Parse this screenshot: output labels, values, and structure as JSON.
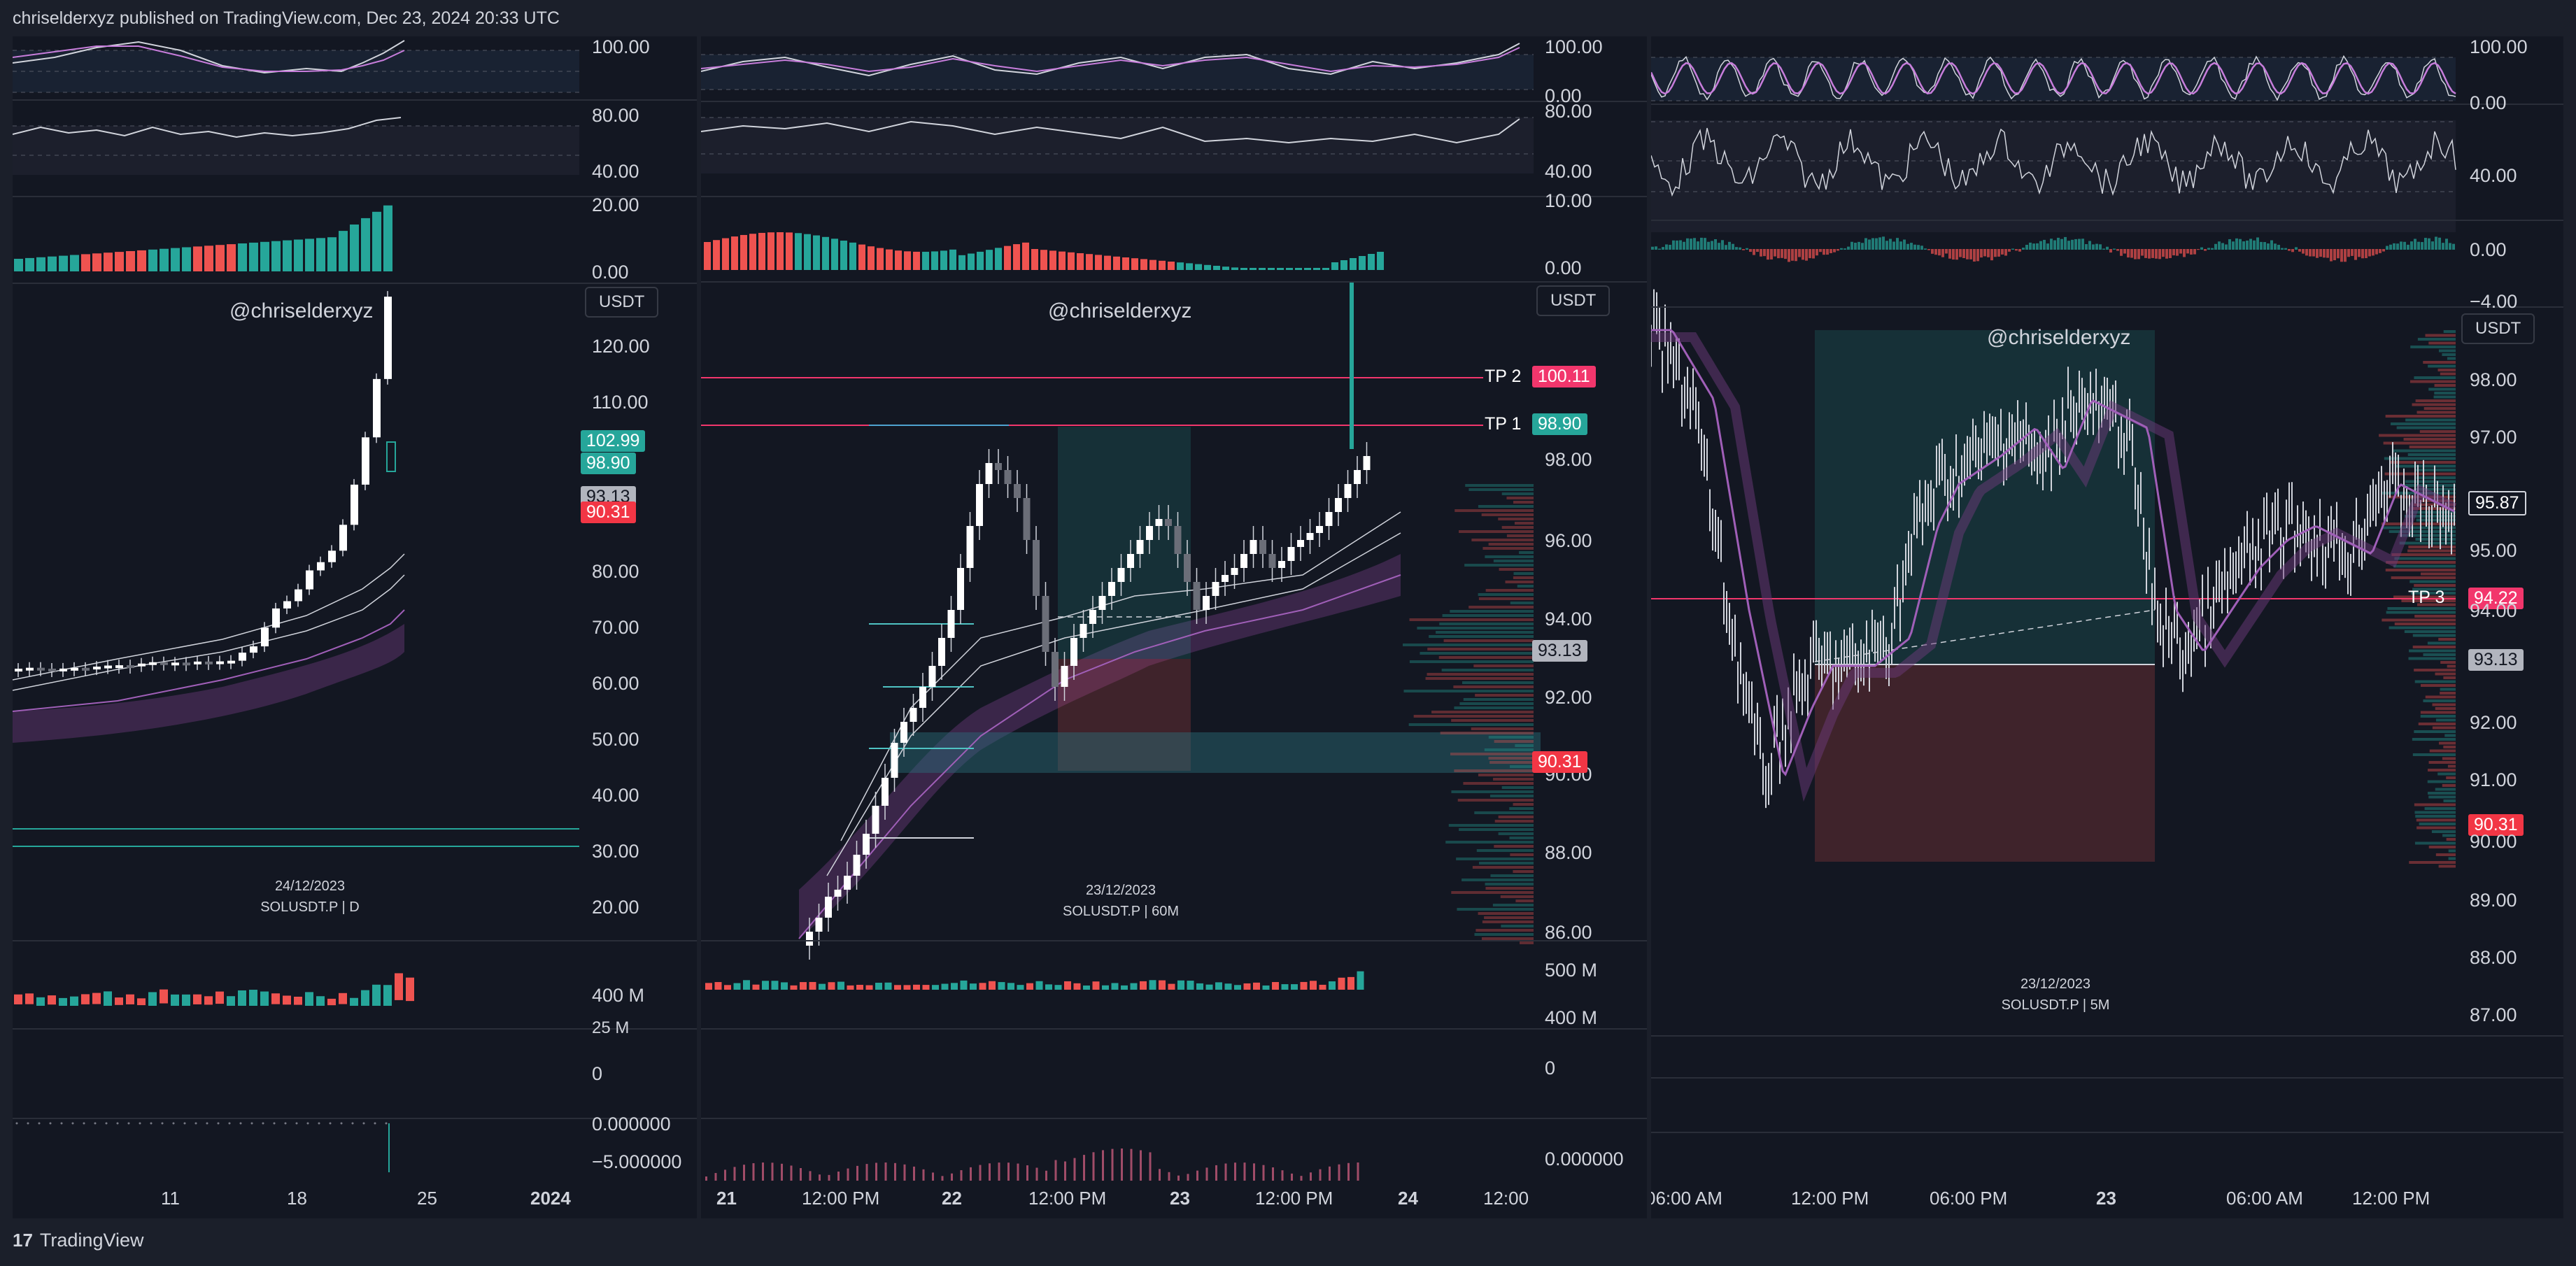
{
  "header": {
    "text": "chriselderxyz published on TradingView.com, Dec 23, 2024 20:33 UTC"
  },
  "footer": {
    "logo_glyph": "17",
    "brand": "TradingView"
  },
  "colors": {
    "bg": "#131722",
    "up": "#26a69a",
    "down": "#ef5350",
    "teal_tag": "#26a69a",
    "red_tag": "#f23645",
    "pink_tag": "#f2366c",
    "gray_tag": "#b2b5be",
    "purple": "#a05fb8"
  },
  "panels": [
    {
      "watermark": "@chriselderxyz",
      "currency": "USDT",
      "symbol_date": "24/12/2023",
      "symbol": "SOLUSDT.P | D",
      "rsi_axis": [
        "100.00",
        "80.00",
        "40.00"
      ],
      "macd_axis": [
        "20.00",
        "0.00"
      ],
      "price_axis": [
        "120.00",
        "110.00",
        "80.00",
        "70.00",
        "60.00",
        "50.00",
        "40.00",
        "30.00",
        "20.00"
      ],
      "tags": [
        {
          "text": "102.99",
          "kind": "teal"
        },
        {
          "text": "98.90",
          "kind": "teal"
        },
        {
          "text": "93.13",
          "kind": "gray"
        },
        {
          "text": "90.31",
          "kind": "red"
        }
      ],
      "volume_axis": [
        "400 M",
        "25 M",
        "0"
      ],
      "osc_axis": [
        "0.000000",
        "−5.000000"
      ],
      "time_axis": [
        "11",
        "18",
        "25",
        "2024"
      ]
    },
    {
      "watermark": "@chriselderxyz",
      "currency": "USDT",
      "symbol_date": "23/12/2023",
      "symbol": "SOLUSDT.P | 60M",
      "rsi_axis": [
        "100.00",
        "0.00",
        "80.00",
        "40.00"
      ],
      "macd_axis": [
        "10.00",
        "0.00"
      ],
      "price_axis": [
        "98.00",
        "96.00",
        "94.00",
        "92.00",
        "90.00",
        "88.00",
        "86.00"
      ],
      "tp_labels": [
        "TP 2",
        "TP 1"
      ],
      "tags": [
        {
          "text": "100.11",
          "kind": "pink"
        },
        {
          "text": "98.90",
          "kind": "teal"
        },
        {
          "text": "93.13",
          "kind": "gray"
        },
        {
          "text": "90.31",
          "kind": "red"
        }
      ],
      "volume_axis": [
        "500 M",
        "400 M",
        "0"
      ],
      "osc_axis": [
        "0.000000"
      ],
      "time_axis": [
        "21",
        "12:00 PM",
        "22",
        "12:00 PM",
        "23",
        "12:00 PM",
        "24",
        "12:00"
      ]
    },
    {
      "watermark": "@chriselderxyz",
      "currency": "USDT",
      "symbol_date": "23/12/2023",
      "symbol": "SOLUSDT.P | 5M",
      "rsi_axis": [
        "100.00",
        "0.00",
        "40.00"
      ],
      "macd_axis": [
        "0.00",
        "−4.00"
      ],
      "price_axis": [
        "98.00",
        "97.00",
        "95.00",
        "94.00",
        "92.00",
        "91.00",
        "90.00",
        "89.00",
        "88.00",
        "87.00"
      ],
      "tp_labels": [
        "TP 3"
      ],
      "tags": [
        {
          "text": "95.87",
          "kind": "outline"
        },
        {
          "text": "94.22",
          "kind": "pink"
        },
        {
          "text": "93.13",
          "kind": "gray"
        },
        {
          "text": "90.31",
          "kind": "red"
        }
      ],
      "time_axis": [
        "06:00 AM",
        "12:00 PM",
        "06:00 PM",
        "23",
        "06:00 AM",
        "12:00 PM"
      ]
    }
  ]
}
